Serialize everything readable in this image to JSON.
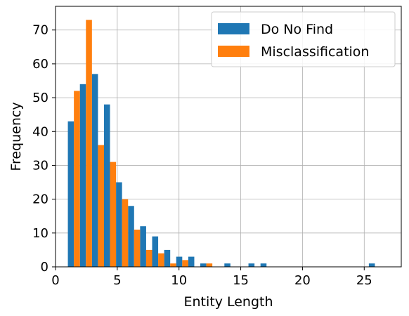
{
  "chart_data": {
    "type": "bar",
    "title": "",
    "xlabel": "Entity Length",
    "ylabel": "Frequency",
    "xlim": [
      0,
      28
    ],
    "ylim": [
      0,
      77
    ],
    "xticks": [
      0,
      5,
      10,
      15,
      20,
      25
    ],
    "yticks": [
      0,
      10,
      20,
      30,
      40,
      50,
      60,
      70
    ],
    "grid": true,
    "legend_position": "top-right",
    "bin_width": 0.975,
    "bin_start": 1.0,
    "series": [
      {
        "name": "Do No Find",
        "color": "#1f77b4",
        "values": [
          43,
          54,
          57,
          48,
          25,
          18,
          12,
          9,
          5,
          3,
          3,
          1,
          0,
          1,
          0,
          1,
          1,
          0,
          0,
          0,
          0,
          0,
          0,
          0,
          0,
          1
        ]
      },
      {
        "name": "Misclassification",
        "color": "#ff7f0e",
        "values": [
          52,
          73,
          36,
          31,
          20,
          11,
          5,
          4,
          1,
          2,
          0,
          1,
          0,
          0,
          0,
          0,
          0,
          0,
          0,
          0,
          0,
          0,
          0,
          0,
          0,
          0
        ]
      }
    ]
  }
}
